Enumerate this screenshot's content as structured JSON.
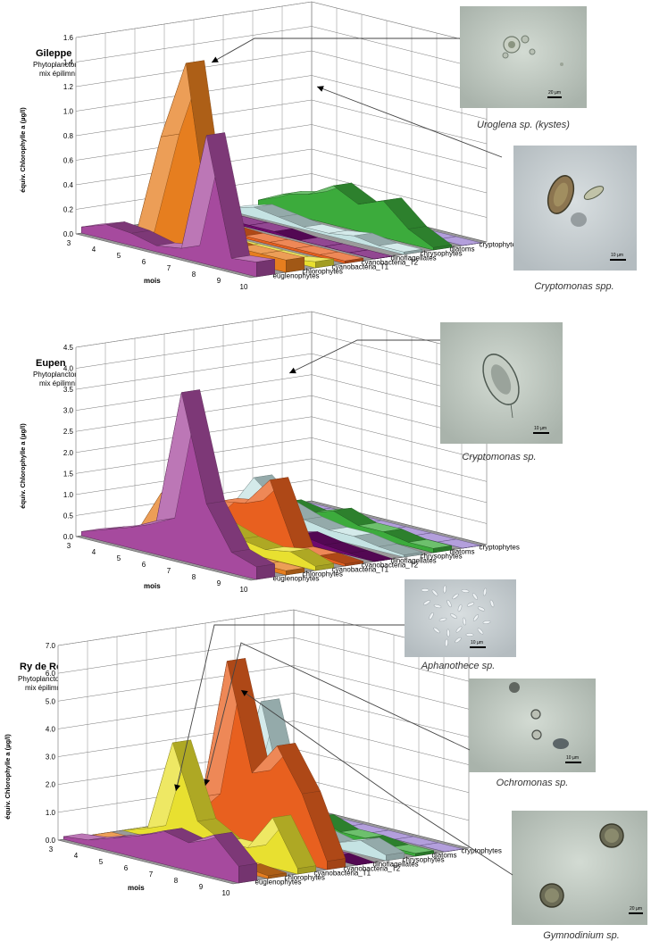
{
  "charts": [
    {
      "title": "Gileppe",
      "subtitle_1": "Phytoplancton 2006",
      "subtitle_2": "mix épilimnion",
      "ylabel": "équiv. Chlorophylle a (µg/l)",
      "xlabel": "mois",
      "y_ticks": [
        "0.0",
        "0.2",
        "0.4",
        "0.6",
        "0.8",
        "1.0",
        "1.2",
        "1.4",
        "1.6"
      ],
      "x_ticks": [
        "3",
        "4",
        "5",
        "6",
        "7",
        "8",
        "9",
        "10"
      ],
      "series_labels": [
        "cryptophytes",
        "diatoms",
        "chrysophytes",
        "dinoflagellates",
        "cyanobacteria_T2",
        "cyanobacteria_T1",
        "chlorophytes",
        "euglenophytes"
      ]
    },
    {
      "title": "Eupen",
      "subtitle_1": "Phytoplancton 2006",
      "subtitle_2": "mix épilimnion",
      "ylabel": "équiv. Chlorophylle a (µg/l)",
      "xlabel": "mois",
      "y_ticks": [
        "0.0",
        "0.5",
        "1.0",
        "1.5",
        "2.0",
        "2.5",
        "3.0",
        "3.5",
        "4.0",
        "4.5"
      ],
      "x_ticks": [
        "3",
        "4",
        "5",
        "6",
        "7",
        "8",
        "9",
        "10"
      ],
      "series_labels": [
        "cryptophytes",
        "diatoms",
        "chrysophytes",
        "dinoflagellates",
        "cyanobacteria_T2",
        "cyanobacteria_T1",
        "chlorophytes",
        "euglenophytes"
      ]
    },
    {
      "title": "Ry de Rome",
      "subtitle_1": "Phytoplancton 2006",
      "subtitle_2": "mix épilimnion",
      "ylabel": "équiv. Chlorophylle a (µg/l)",
      "xlabel": "mois",
      "y_ticks": [
        "0.0",
        "1.0",
        "2.0",
        "3.0",
        "4.0",
        "5.0",
        "6.0",
        "7.0"
      ],
      "x_ticks": [
        "3",
        "4",
        "5",
        "6",
        "7",
        "8",
        "9",
        "10"
      ],
      "series_labels": [
        "cryptophytes",
        "diatoms",
        "chrysophytes",
        "dinoflagellates",
        "cyanobacteria_T2",
        "cyanobacteria_T1",
        "chlorophytes",
        "euglenophytes"
      ]
    }
  ],
  "photos": [
    {
      "caption": "Uroglena sp. (kystes)",
      "scale": "20 µm"
    },
    {
      "caption": "Cryptomonas spp.",
      "scale": "10 µm"
    },
    {
      "caption": "Cryptomonas sp.",
      "scale": "10 µm"
    },
    {
      "caption": "Aphanothece sp.",
      "scale": "10 µm"
    },
    {
      "caption": "Ochromonas sp.",
      "scale": "10 µm"
    },
    {
      "caption": "Gymnodinium sp.",
      "scale": "20 µm"
    }
  ],
  "colors": {
    "cryptophytes": "#a64a9e",
    "diatoms": "#e67e1f",
    "chrysophytes": "#e8e030",
    "dinoflagellates": "#e8601f",
    "cyanobacteria_T2": "#6e0a6e",
    "cyanobacteria_T1": "#c5e3e3",
    "chlorophytes": "#3cab3c",
    "euglenophytes": "#9a7fd0"
  },
  "chart_data": [
    {
      "type": "area",
      "title": "Gileppe",
      "xlabel": "mois",
      "ylabel": "équiv. Chlorophylle a (µg/l)",
      "ylim": [
        0,
        1.6
      ],
      "x": [
        3,
        4,
        5,
        6,
        7,
        8,
        9,
        10
      ],
      "series": [
        {
          "name": "euglenophytes",
          "values": [
            0.0,
            0.0,
            0.0,
            0.0,
            0.0,
            0.0,
            0.0,
            0.0
          ]
        },
        {
          "name": "chlorophytes",
          "values": [
            0.05,
            0.15,
            0.2,
            0.32,
            0.22,
            0.3,
            0.12,
            0.02
          ]
        },
        {
          "name": "cyanobacteria_T1",
          "values": [
            0.02,
            0.08,
            0.05,
            0.02,
            0.02,
            0.05,
            0.02,
            0.02
          ]
        },
        {
          "name": "cyanobacteria_T2",
          "values": [
            0.0,
            0.02,
            0.02,
            0.02,
            0.0,
            0.0,
            0.0,
            0.0
          ]
        },
        {
          "name": "dinoflagellates",
          "values": [
            0.02,
            0.05,
            0.03,
            0.02,
            0.02,
            0.02,
            0.02,
            0.02
          ]
        },
        {
          "name": "chrysophytes",
          "values": [
            0.05,
            0.02,
            0.02,
            0.02,
            0.02,
            0.02,
            0.02,
            0.05
          ]
        },
        {
          "name": "diatoms",
          "values": [
            0.0,
            0.0,
            0.85,
            1.5,
            0.12,
            0.1,
            0.1,
            0.1
          ]
        },
        {
          "name": "cryptophytes",
          "values": [
            0.05,
            0.12,
            0.1,
            0.05,
            0.08,
            1.05,
            0.1,
            0.12
          ]
        }
      ]
    },
    {
      "type": "area",
      "title": "Eupen",
      "xlabel": "mois",
      "ylabel": "équiv. Chlorophylle a (µg/l)",
      "ylim": [
        0,
        4.5
      ],
      "x": [
        3,
        4,
        5,
        6,
        7,
        8,
        9,
        10
      ],
      "series": [
        {
          "name": "euglenophytes",
          "values": [
            0.0,
            0.0,
            0.0,
            0.0,
            0.0,
            0.0,
            0.0,
            0.0
          ]
        },
        {
          "name": "chlorophytes",
          "values": [
            0.1,
            0.3,
            0.2,
            0.4,
            0.2,
            0.2,
            0.1,
            0.1
          ]
        },
        {
          "name": "cyanobacteria_T1",
          "values": [
            0.1,
            1.0,
            0.5,
            0.3,
            0.2,
            0.2,
            0.1,
            0.05
          ]
        },
        {
          "name": "cyanobacteria_T2",
          "values": [
            0.0,
            0.05,
            0.1,
            0.05,
            0.2,
            0.1,
            0.05,
            0.0
          ]
        },
        {
          "name": "dinoflagellates",
          "values": [
            0.0,
            0.1,
            0.8,
            0.9,
            1.6,
            0.1,
            0.1,
            0.05
          ]
        },
        {
          "name": "chrysophytes",
          "values": [
            0.0,
            0.2,
            1.0,
            0.5,
            0.3,
            0.2,
            0.3,
            0.1
          ]
        },
        {
          "name": "diatoms",
          "values": [
            0.0,
            0.1,
            1.2,
            1.8,
            0.2,
            0.1,
            0.1,
            0.1
          ]
        },
        {
          "name": "cryptophytes",
          "values": [
            0.1,
            0.3,
            0.5,
            0.8,
            4.0,
            1.5,
            0.5,
            0.3
          ]
        }
      ]
    },
    {
      "type": "area",
      "title": "Ry de Rome",
      "xlabel": "mois",
      "ylabel": "équiv. Chlorophylle a (µg/l)",
      "ylim": [
        0,
        7.0
      ],
      "x": [
        3,
        4,
        5,
        6,
        7,
        8,
        9,
        10
      ],
      "series": [
        {
          "name": "euglenophytes",
          "values": [
            0.0,
            0.0,
            0.0,
            0.0,
            0.0,
            0.0,
            0.0,
            0.0
          ]
        },
        {
          "name": "chlorophytes",
          "values": [
            0.1,
            0.3,
            0.2,
            0.5,
            0.2,
            0.2,
            0.1,
            0.1
          ]
        },
        {
          "name": "cyanobacteria_T1",
          "values": [
            0.8,
            1.0,
            4.6,
            1.0,
            0.4,
            0.2,
            0.5,
            0.2
          ]
        },
        {
          "name": "cyanobacteria_T2",
          "values": [
            0.0,
            0.05,
            0.1,
            0.3,
            0.2,
            0.1,
            0.1,
            0.0
          ]
        },
        {
          "name": "dinoflagellates",
          "values": [
            0.2,
            0.5,
            1.5,
            6.6,
            2.8,
            4.0,
            2.5,
            0.3
          ]
        },
        {
          "name": "chrysophytes",
          "values": [
            0.0,
            0.3,
            3.6,
            1.0,
            0.5,
            0.5,
            1.8,
            0.2
          ]
        },
        {
          "name": "diatoms",
          "values": [
            0.0,
            0.0,
            0.2,
            0.3,
            0.2,
            0.2,
            0.2,
            0.1
          ]
        },
        {
          "name": "cryptophytes",
          "values": [
            0.1,
            0.2,
            0.5,
            0.8,
            1.2,
            1.0,
            1.5,
            0.6
          ]
        }
      ]
    }
  ]
}
